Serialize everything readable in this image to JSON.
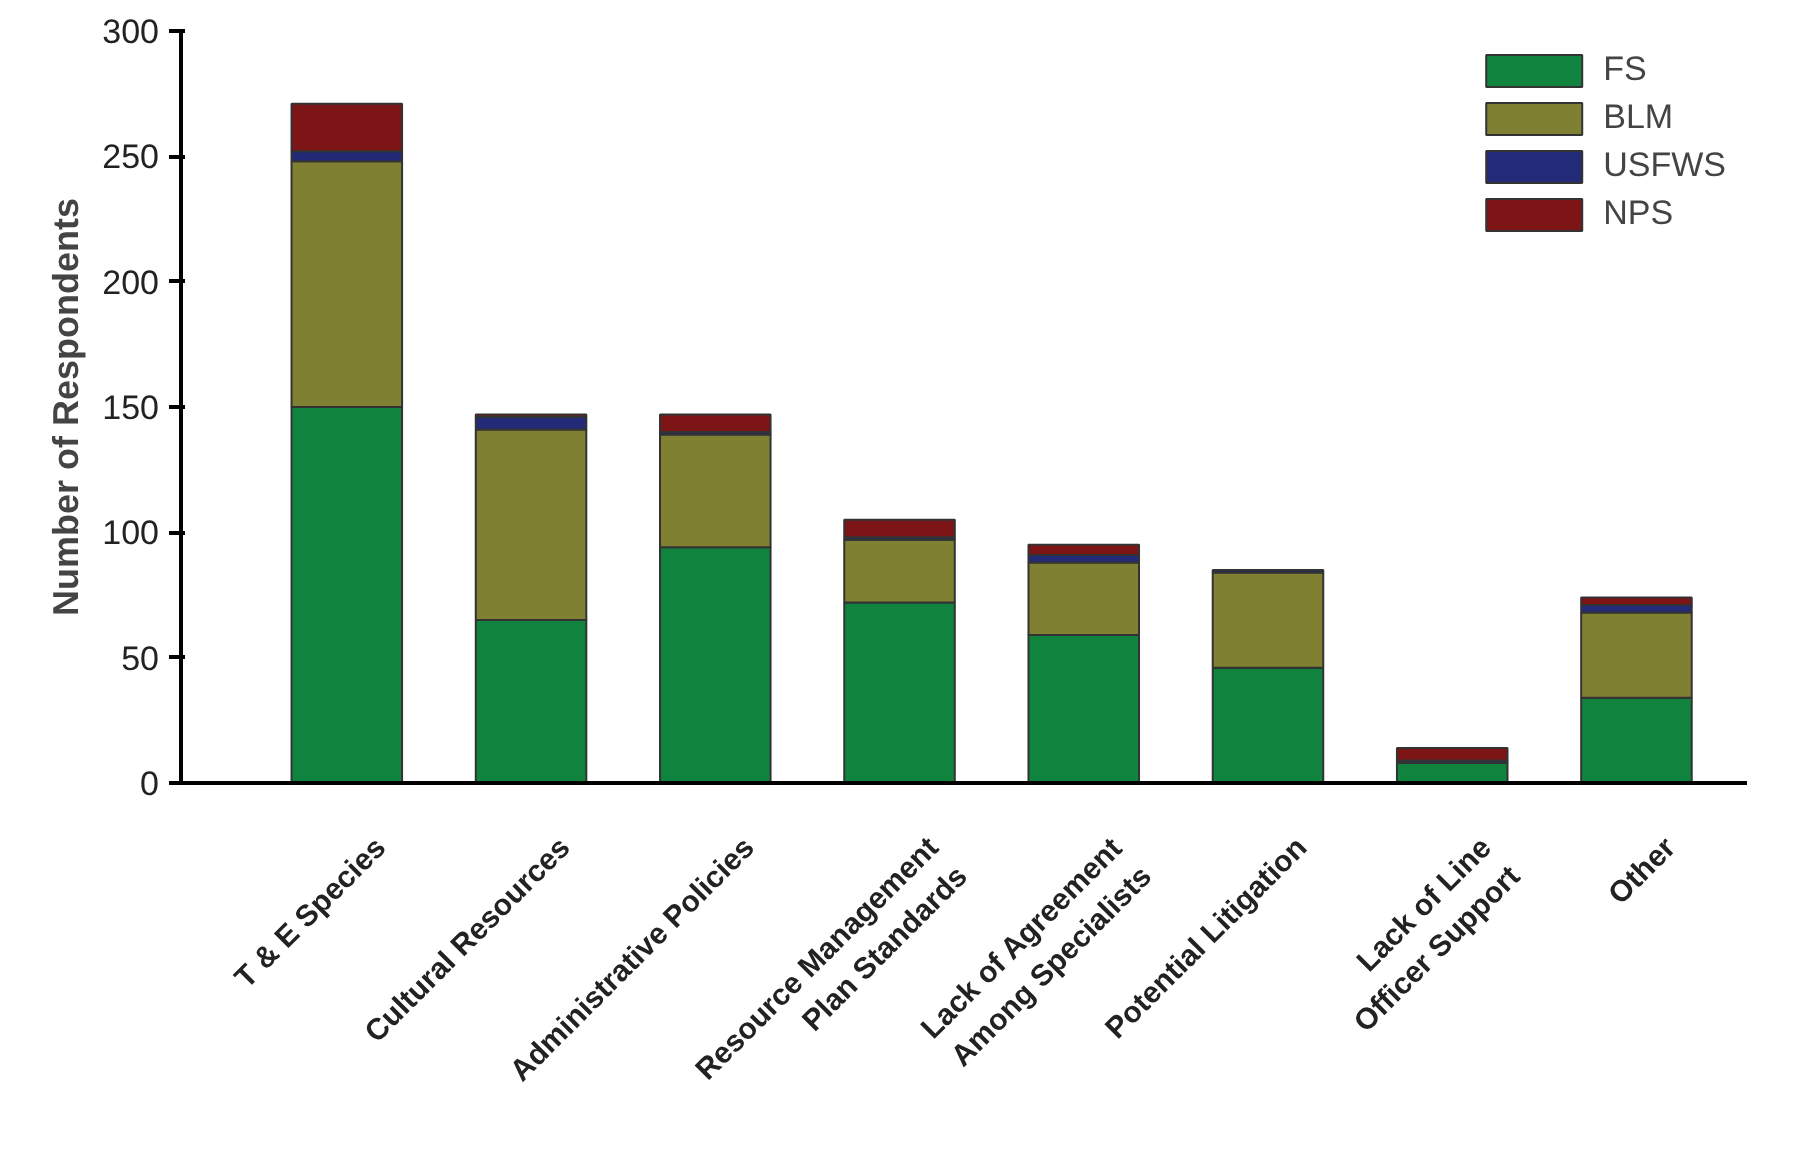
{
  "chart_data": {
    "type": "bar",
    "stacked": true,
    "ylabel": "Number of Respondents",
    "categories": [
      "T & E Species",
      "Cultural Resources",
      "Administrative Policies",
      "Resource Management\nPlan Standards",
      "Lack of Agreement\nAmong Specialists",
      "Potential Litigation",
      "Lack of Line\nOfficer Support",
      "Other"
    ],
    "series": [
      {
        "name": "FS",
        "color": "#10843f",
        "values": [
          150,
          65,
          94,
          72,
          59,
          46,
          8,
          34
        ]
      },
      {
        "name": "BLM",
        "color": "#808033",
        "values": [
          98,
          76,
          45,
          25,
          29,
          38,
          0,
          34
        ]
      },
      {
        "name": "USFWS",
        "color": "#232a78",
        "values": [
          4,
          5,
          1,
          1,
          3,
          1,
          1,
          3
        ]
      },
      {
        "name": "NPS",
        "color": "#7d1416",
        "values": [
          19,
          1,
          7,
          7,
          4,
          0,
          5,
          3
        ]
      }
    ],
    "ylim": [
      0,
      300
    ],
    "yticks": [
      0,
      50,
      100,
      150,
      200,
      250,
      300
    ],
    "grid": false,
    "legend": "top right"
  }
}
